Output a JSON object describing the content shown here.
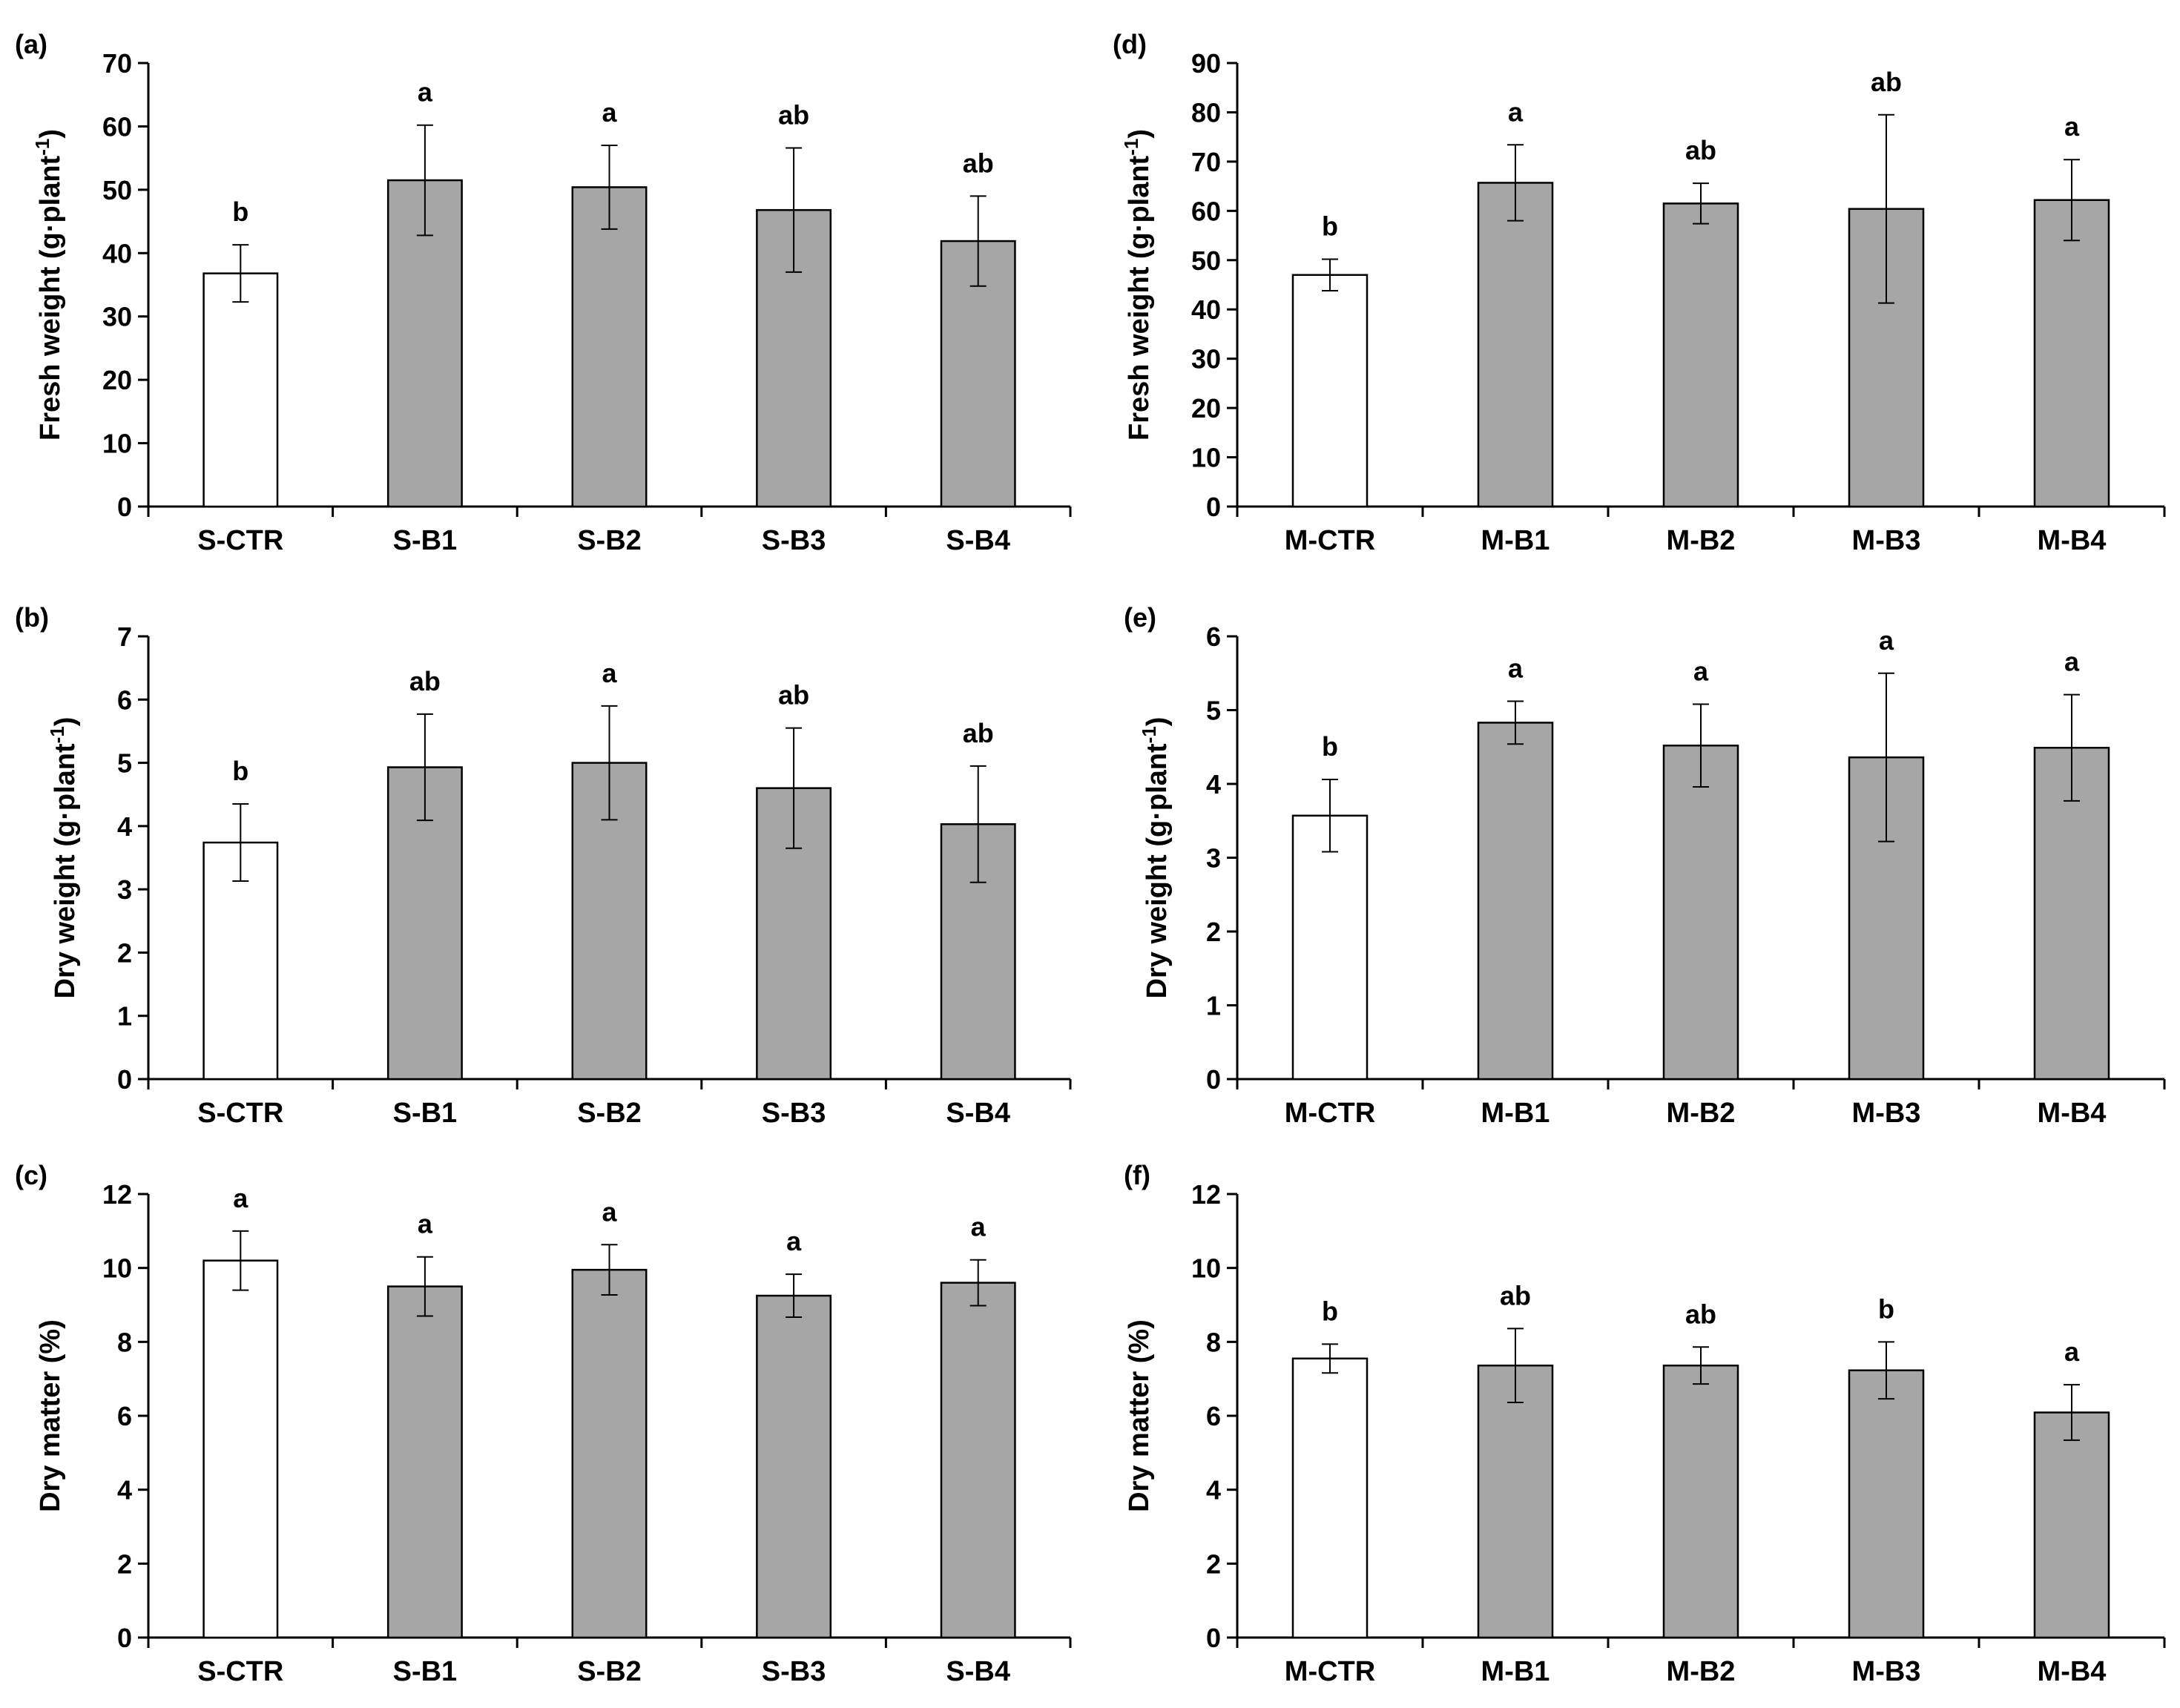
{
  "chart_data": [
    {
      "type": "bar",
      "panel": "(a)",
      "ylabel": "Fresh weight (g·plant-1)",
      "ylabel_main": "Fresh weight (g·plant",
      "ylabel_sup": "-1",
      "ylabel_end": ")",
      "ylim": [
        0,
        70
      ],
      "yticks": [
        0,
        10,
        20,
        30,
        40,
        50,
        60,
        70
      ],
      "categories": [
        "S-CTR",
        "S-B1",
        "S-B2",
        "S-B3",
        "S-B4"
      ],
      "values": [
        36.8,
        51.5,
        50.4,
        46.8,
        41.9
      ],
      "errors": [
        4.5,
        8.7,
        6.6,
        9.8,
        7.1
      ],
      "letters": [
        "b",
        "a",
        "a",
        "ab",
        "ab"
      ],
      "colors": [
        "#ffffff",
        "#a6a6a6",
        "#a6a6a6",
        "#a6a6a6",
        "#a6a6a6"
      ]
    },
    {
      "type": "bar",
      "panel": "(b)",
      "ylabel": "Dry weight (g·plant-1)",
      "ylabel_main": "Dry weight (g·plant",
      "ylabel_sup": "-1",
      "ylabel_end": ")",
      "ylim": [
        0,
        7
      ],
      "yticks": [
        0,
        1,
        2,
        3,
        4,
        5,
        6,
        7
      ],
      "categories": [
        "S-CTR",
        "S-B1",
        "S-B2",
        "S-B3",
        "S-B4"
      ],
      "values": [
        3.74,
        4.93,
        5.0,
        4.6,
        4.03
      ],
      "errors": [
        0.61,
        0.84,
        0.9,
        0.95,
        0.92
      ],
      "letters": [
        "b",
        "ab",
        "a",
        "ab",
        "ab"
      ],
      "colors": [
        "#ffffff",
        "#a6a6a6",
        "#a6a6a6",
        "#a6a6a6",
        "#a6a6a6"
      ]
    },
    {
      "type": "bar",
      "panel": "(c)",
      "ylabel": "Dry matter (%)",
      "ylabel_main": "Dry matter (%)",
      "ylabel_sup": "",
      "ylabel_end": "",
      "ylim": [
        0,
        12
      ],
      "yticks": [
        0,
        2,
        4,
        6,
        8,
        10,
        12
      ],
      "categories": [
        "S-CTR",
        "S-B1",
        "S-B2",
        "S-B3",
        "S-B4"
      ],
      "values": [
        10.2,
        9.5,
        9.95,
        9.25,
        9.6
      ],
      "errors": [
        0.8,
        0.8,
        0.68,
        0.58,
        0.62
      ],
      "letters": [
        "a",
        "a",
        "a",
        "a",
        "a"
      ],
      "colors": [
        "#ffffff",
        "#a6a6a6",
        "#a6a6a6",
        "#a6a6a6",
        "#a6a6a6"
      ]
    },
    {
      "type": "bar",
      "panel": "(d)",
      "ylabel": "Fresh weight (g·plant-1)",
      "ylabel_main": "Fresh weight (g·plant",
      "ylabel_sup": "-1",
      "ylabel_end": ")",
      "ylim": [
        0,
        90
      ],
      "yticks": [
        0,
        10,
        20,
        30,
        40,
        50,
        60,
        70,
        80,
        90
      ],
      "categories": [
        "M-CTR",
        "M-B1",
        "M-B2",
        "M-B3",
        "M-B4"
      ],
      "values": [
        47.0,
        65.7,
        61.5,
        60.4,
        62.2
      ],
      "errors": [
        3.2,
        7.7,
        4.1,
        19.1,
        8.2
      ],
      "letters": [
        "b",
        "a",
        "ab",
        "ab",
        "a"
      ],
      "colors": [
        "#ffffff",
        "#a6a6a6",
        "#a6a6a6",
        "#a6a6a6",
        "#a6a6a6"
      ]
    },
    {
      "type": "bar",
      "panel": "(e)",
      "ylabel": "Dry weight (g·plant-1)",
      "ylabel_main": "Dry weight (g·plant",
      "ylabel_sup": "-1",
      "ylabel_end": ")",
      "ylim": [
        0,
        6
      ],
      "yticks": [
        0,
        1,
        2,
        3,
        4,
        5,
        6
      ],
      "categories": [
        "M-CTR",
        "M-B1",
        "M-B2",
        "M-B3",
        "M-B4"
      ],
      "values": [
        3.57,
        4.83,
        4.52,
        4.36,
        4.49
      ],
      "errors": [
        0.49,
        0.29,
        0.56,
        1.14,
        0.72
      ],
      "letters": [
        "b",
        "a",
        "a",
        "a",
        "a"
      ],
      "colors": [
        "#ffffff",
        "#a6a6a6",
        "#a6a6a6",
        "#a6a6a6",
        "#a6a6a6"
      ]
    },
    {
      "type": "bar",
      "panel": "(f)",
      "ylabel": "Dry matter (%)",
      "ylabel_main": "Dry matter (%)",
      "ylabel_sup": "",
      "ylabel_end": "",
      "ylim": [
        0,
        12
      ],
      "yticks": [
        0,
        2,
        4,
        6,
        8,
        10,
        12
      ],
      "categories": [
        "M-CTR",
        "M-B1",
        "M-B2",
        "M-B3",
        "M-B4"
      ],
      "values": [
        7.55,
        7.36,
        7.36,
        7.23,
        6.09
      ],
      "errors": [
        0.39,
        1.0,
        0.5,
        0.77,
        0.75
      ],
      "letters": [
        "b",
        "ab",
        "ab",
        "b",
        "a"
      ],
      "colors": [
        "#ffffff",
        "#a6a6a6",
        "#a6a6a6",
        "#a6a6a6",
        "#a6a6a6"
      ]
    }
  ]
}
